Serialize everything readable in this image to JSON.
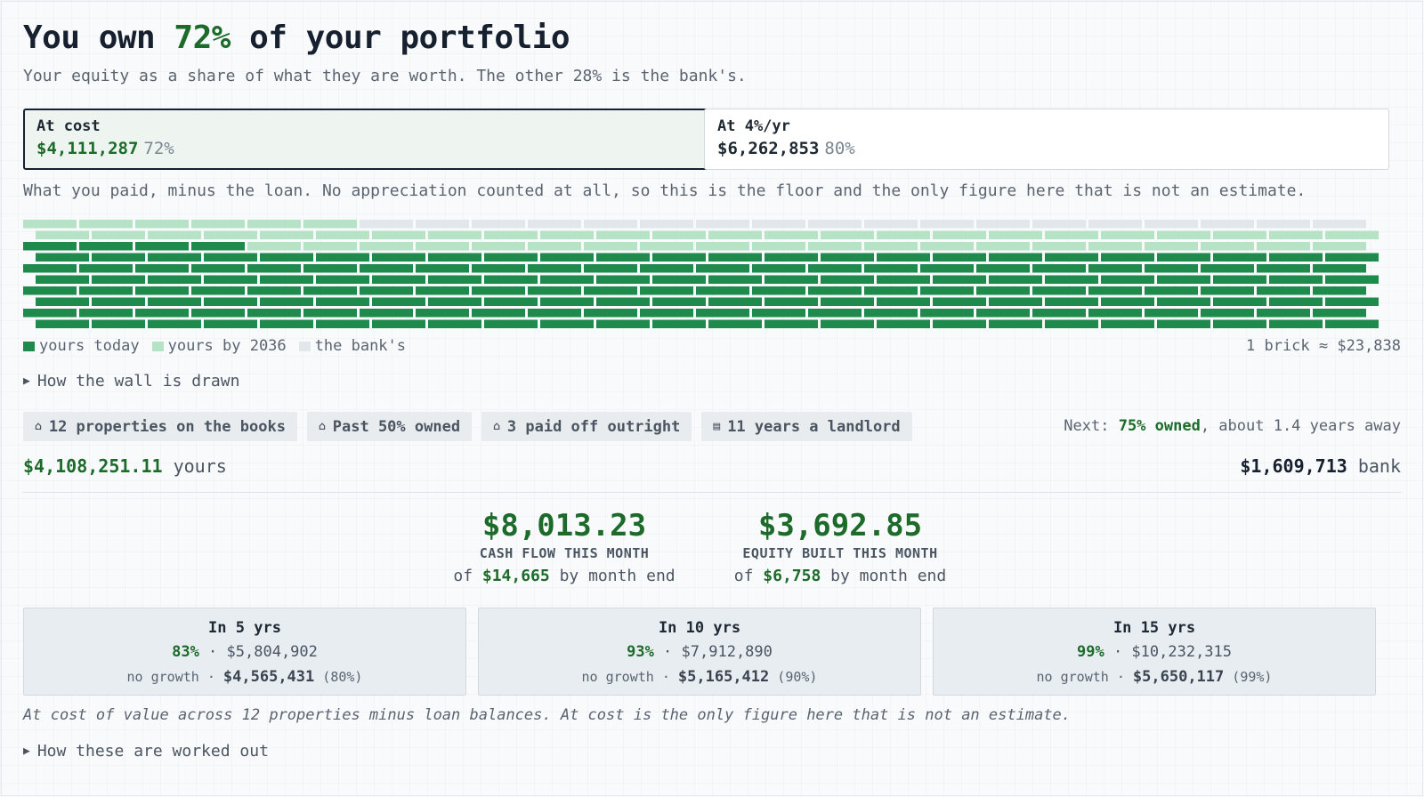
{
  "header": {
    "title_before": "You own ",
    "title_pct": "72%",
    "title_after": " of your portfolio",
    "subtitle": "Your equity as a share of what they are worth. The other 28% is the bank's."
  },
  "modes": [
    {
      "label": "At cost",
      "value": "$4,111,287",
      "pct": "72%",
      "active": true
    },
    {
      "label": "At 4%/yr",
      "value": "$6,262,853",
      "pct": "80%",
      "active": false
    }
  ],
  "mode_description": "What you paid, minus the loan. No appreciation counted at all, so this is the floor and the only figure here that is not an estimate.",
  "wall": {
    "total_bricks": 240,
    "yours_today_bricks": 172,
    "yours_by_2036_bricks": 222,
    "colors": {
      "yours_today": "#1e8a4c",
      "yours_by_2036": "#b6e2c5",
      "bank": "#e2e7ec"
    }
  },
  "legend": {
    "yours_today": "yours today",
    "yours_by": "yours by 2036",
    "bank": "the bank's",
    "brick_note": "1 brick ≈ $23,838"
  },
  "wall_disclosure": "How the wall is drawn",
  "badges": [
    {
      "icon": "house-icon",
      "glyph": "⌂",
      "label": "12 properties on the books"
    },
    {
      "icon": "bank-icon",
      "glyph": "⌂",
      "label": "Past 50% owned"
    },
    {
      "icon": "house-icon",
      "glyph": "⌂",
      "label": "3 paid off outright"
    },
    {
      "icon": "building-icon",
      "glyph": "▤",
      "label": "11 years a landlord"
    }
  ],
  "next_milestone": {
    "prefix": "Next: ",
    "highlight": "75% owned",
    "suffix": ", about 1.4 years away"
  },
  "totals": {
    "yours_value": "$4,108,251.11",
    "yours_label": " yours",
    "bank_value": "$1,609,713",
    "bank_label": " bank"
  },
  "metrics": [
    {
      "value": "$8,013.23",
      "caption": "CASH FLOW THIS MONTH",
      "of_prefix": "of ",
      "of_value": "$14,665",
      "of_suffix": " by month end"
    },
    {
      "value": "$3,692.85",
      "caption": "EQUITY BUILT THIS MONTH",
      "of_prefix": "of ",
      "of_value": "$6,758",
      "of_suffix": " by month end"
    }
  ],
  "projections": [
    {
      "heading": "In 5 yrs",
      "pct": "83%",
      "value": "$5,804,902",
      "nogrowth_label": "no growth · ",
      "nogrowth_value": "$4,565,431",
      "nogrowth_pct": " (80%)"
    },
    {
      "heading": "In 10 yrs",
      "pct": "93%",
      "value": "$7,912,890",
      "nogrowth_label": "no growth · ",
      "nogrowth_value": "$5,165,412",
      "nogrowth_pct": " (90%)"
    },
    {
      "heading": "In 15 yrs",
      "pct": "99%",
      "value": "$10,232,315",
      "nogrowth_label": "no growth · ",
      "nogrowth_value": "$5,650,117",
      "nogrowth_pct": " (99%)"
    }
  ],
  "projection_sep": " · ",
  "footnote": "At cost of value across 12 properties minus loan balances. At cost is the only figure here that is not an estimate.",
  "calc_disclosure": "How these are worked out"
}
